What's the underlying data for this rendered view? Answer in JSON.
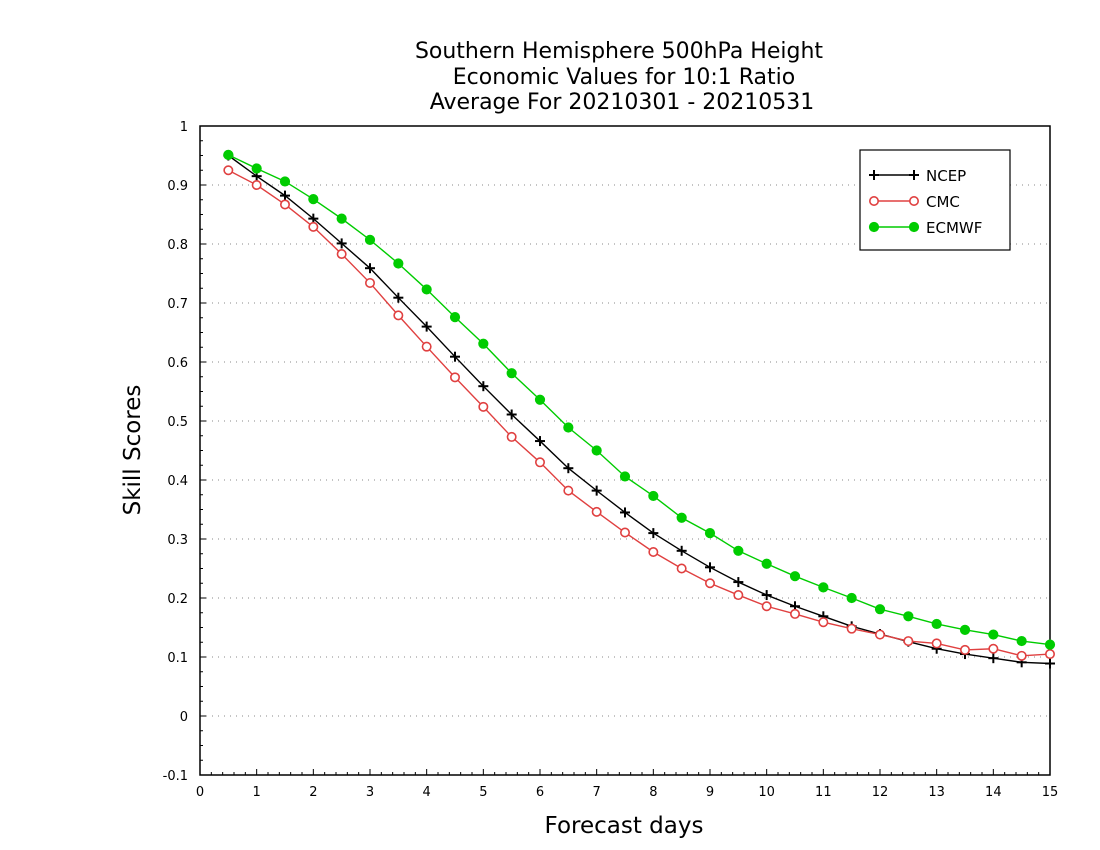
{
  "chart_data": {
    "type": "line",
    "title": [
      "Southern Hemisphere 500hPa Height",
      "Economic Values for 10:1 Ratio",
      "Average For 20210301 - 20210531"
    ],
    "xlabel": "Forecast days",
    "ylabel": "Skill Scores",
    "xlim": [
      0,
      15
    ],
    "ylim": [
      -0.1,
      1
    ],
    "xticks": [
      0,
      1,
      2,
      3,
      4,
      5,
      6,
      7,
      8,
      9,
      10,
      11,
      12,
      13,
      14,
      15
    ],
    "xtick_labels": [
      "0",
      "1",
      "2",
      "3",
      "4",
      "5",
      "6",
      "7",
      "8",
      "9",
      "10",
      "11",
      "12",
      "13",
      "14",
      "15"
    ],
    "yticks": [
      -0.1,
      0,
      0.1,
      0.2,
      0.3,
      0.4,
      0.5,
      0.6,
      0.7,
      0.8,
      0.9,
      1
    ],
    "ytick_labels": [
      "-0.1",
      "0",
      "0.1",
      "0.2",
      "0.3",
      "0.4",
      "0.5",
      "0.6",
      "0.7",
      "0.8",
      "0.9",
      "1"
    ],
    "grid": "horizontal dotted",
    "legend_position": "top-right",
    "x": [
      0.5,
      1,
      1.5,
      2,
      2.5,
      3,
      3.5,
      4,
      4.5,
      5,
      5.5,
      6,
      6.5,
      7,
      7.5,
      8,
      8.5,
      9,
      9.5,
      10,
      10.5,
      11,
      11.5,
      12,
      12.5,
      13,
      13.5,
      14,
      14.5,
      15
    ],
    "series": [
      {
        "name": "NCEP",
        "color": "#000000",
        "marker": "plus",
        "values": [
          0.95,
          0.915,
          0.882,
          0.843,
          0.801,
          0.759,
          0.709,
          0.66,
          0.609,
          0.559,
          0.511,
          0.466,
          0.42,
          0.382,
          0.345,
          0.31,
          0.28,
          0.252,
          0.227,
          0.205,
          0.186,
          0.169,
          0.152,
          0.139,
          0.126,
          0.114,
          0.105,
          0.098,
          0.091,
          0.089
        ]
      },
      {
        "name": "CMC",
        "color": "#e04040",
        "marker": "open-circle",
        "values": [
          0.925,
          0.9,
          0.867,
          0.829,
          0.783,
          0.734,
          0.679,
          0.626,
          0.574,
          0.524,
          0.473,
          0.43,
          0.382,
          0.346,
          0.311,
          0.278,
          0.25,
          0.225,
          0.205,
          0.186,
          0.173,
          0.159,
          0.148,
          0.138,
          0.127,
          0.123,
          0.112,
          0.114,
          0.102,
          0.105
        ]
      },
      {
        "name": "ECMWF",
        "color": "#00cc00",
        "marker": "filled-circle",
        "values": [
          0.951,
          0.928,
          0.906,
          0.876,
          0.843,
          0.807,
          0.767,
          0.723,
          0.676,
          0.631,
          0.581,
          0.536,
          0.489,
          0.45,
          0.406,
          0.373,
          0.336,
          0.31,
          0.28,
          0.258,
          0.237,
          0.218,
          0.2,
          0.181,
          0.169,
          0.156,
          0.146,
          0.138,
          0.127,
          0.121
        ]
      }
    ]
  }
}
